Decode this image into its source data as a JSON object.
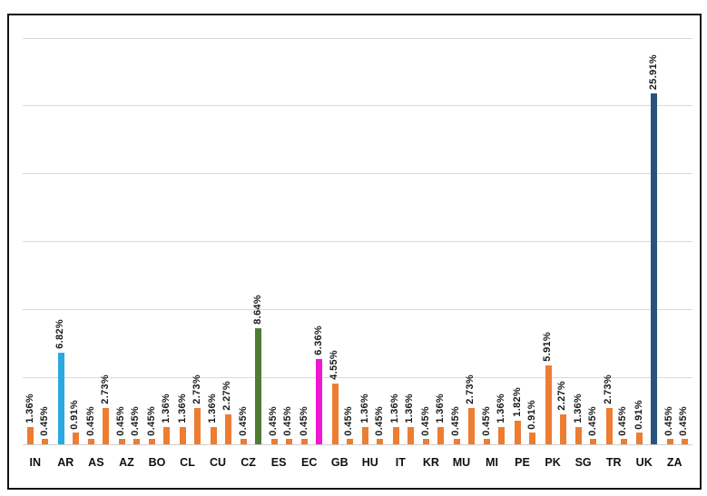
{
  "chart_data": {
    "type": "bar",
    "title": "",
    "xlabel": "",
    "ylabel": "",
    "ylim": [
      0,
      30
    ],
    "gridline_interval_pct": 5,
    "grid": true,
    "legend": "none",
    "value_format": "percent",
    "bars_per_category": 2,
    "gridline_color": "#d9d9d9",
    "frame_border_color": "#121212",
    "bar_colors": {
      "orange": "#ED7D31",
      "blue": "#2BA9E0",
      "green": "#4F7B35",
      "magenta": "#F016D2",
      "navy": "#275380"
    },
    "categories": [
      "IN",
      "AR",
      "AS",
      "AZ",
      "BO",
      "CL",
      "CU",
      "CZ",
      "ES",
      "EC",
      "GB",
      "HU",
      "IT",
      "KR",
      "MU",
      "MI",
      "PE",
      "PK",
      "SG",
      "TR",
      "UK",
      "ZA"
    ],
    "groups": [
      {
        "category": "IN",
        "bars": [
          {
            "value": 1.36,
            "label": "1.36%",
            "color": "orange"
          },
          {
            "value": 0.45,
            "label": "0.45%",
            "color": "orange"
          }
        ]
      },
      {
        "category": "AR",
        "bars": [
          {
            "value": 6.82,
            "label": "6.82%",
            "color": "blue"
          },
          {
            "value": 0.91,
            "label": "0.91%",
            "color": "orange"
          }
        ]
      },
      {
        "category": "AS",
        "bars": [
          {
            "value": 0.45,
            "label": "0.45%",
            "color": "orange"
          },
          {
            "value": 2.73,
            "label": "2.73%",
            "color": "orange"
          }
        ]
      },
      {
        "category": "AZ",
        "bars": [
          {
            "value": 0.45,
            "label": "0.45%",
            "color": "orange"
          },
          {
            "value": 0.45,
            "label": "0.45%",
            "color": "orange"
          }
        ]
      },
      {
        "category": "BO",
        "bars": [
          {
            "value": 0.45,
            "label": "0.45%",
            "color": "orange"
          },
          {
            "value": 1.36,
            "label": "1.36%",
            "color": "orange"
          }
        ]
      },
      {
        "category": "CL",
        "bars": [
          {
            "value": 1.36,
            "label": "1.36%",
            "color": "orange"
          },
          {
            "value": 2.73,
            "label": "2.73%",
            "color": "orange"
          }
        ]
      },
      {
        "category": "CU",
        "bars": [
          {
            "value": 1.36,
            "label": "1.36%",
            "color": "orange"
          },
          {
            "value": 2.27,
            "label": "2.27%",
            "color": "orange"
          }
        ]
      },
      {
        "category": "CZ",
        "bars": [
          {
            "value": 0.45,
            "label": "0.45%",
            "color": "orange"
          },
          {
            "value": 8.64,
            "label": "8.64%",
            "color": "green"
          }
        ]
      },
      {
        "category": "ES",
        "bars": [
          {
            "value": 0.45,
            "label": "0.45%",
            "color": "orange"
          },
          {
            "value": 0.45,
            "label": "0.45%",
            "color": "orange"
          }
        ]
      },
      {
        "category": "EC",
        "bars": [
          {
            "value": 0.45,
            "label": "0.45%",
            "color": "orange"
          },
          {
            "value": 6.36,
            "label": "6.36%",
            "color": "magenta"
          }
        ]
      },
      {
        "category": "GB",
        "bars": [
          {
            "value": 4.55,
            "label": "4.55%",
            "color": "orange"
          },
          {
            "value": 0.45,
            "label": "0.45%",
            "color": "orange"
          }
        ]
      },
      {
        "category": "HU",
        "bars": [
          {
            "value": 1.36,
            "label": "1.36%",
            "color": "orange"
          },
          {
            "value": 0.45,
            "label": "0.45%",
            "color": "orange"
          }
        ]
      },
      {
        "category": "IT",
        "bars": [
          {
            "value": 1.36,
            "label": "1.36%",
            "color": "orange"
          },
          {
            "value": 1.36,
            "label": "1.36%",
            "color": "orange"
          }
        ]
      },
      {
        "category": "KR",
        "bars": [
          {
            "value": 0.45,
            "label": "0.45%",
            "color": "orange"
          },
          {
            "value": 1.36,
            "label": "1.36%",
            "color": "orange"
          }
        ]
      },
      {
        "category": "MU",
        "bars": [
          {
            "value": 0.45,
            "label": "0.45%",
            "color": "orange"
          },
          {
            "value": 2.73,
            "label": "2.73%",
            "color": "orange"
          }
        ]
      },
      {
        "category": "MI",
        "bars": [
          {
            "value": 0.45,
            "label": "0.45%",
            "color": "orange"
          },
          {
            "value": 1.36,
            "label": "1.36%",
            "color": "orange"
          }
        ]
      },
      {
        "category": "PE",
        "bars": [
          {
            "value": 1.82,
            "label": "1.82%",
            "color": "orange"
          },
          {
            "value": 0.91,
            "label": "0.91%",
            "color": "orange"
          }
        ]
      },
      {
        "category": "PK",
        "bars": [
          {
            "value": 5.91,
            "label": "5.91%",
            "color": "orange"
          },
          {
            "value": 2.27,
            "label": "2.27%",
            "color": "orange"
          }
        ]
      },
      {
        "category": "SG",
        "bars": [
          {
            "value": 1.36,
            "label": "1.36%",
            "color": "orange"
          },
          {
            "value": 0.45,
            "label": "0.45%",
            "color": "orange"
          }
        ]
      },
      {
        "category": "TR",
        "bars": [
          {
            "value": 2.73,
            "label": "2.73%",
            "color": "orange"
          },
          {
            "value": 0.45,
            "label": "0.45%",
            "color": "orange"
          }
        ]
      },
      {
        "category": "UK",
        "bars": [
          {
            "value": 0.91,
            "label": "0.91%",
            "color": "orange"
          },
          {
            "value": 25.91,
            "label": "25.91%",
            "color": "navy"
          }
        ]
      },
      {
        "category": "ZA",
        "bars": [
          {
            "value": 0.45,
            "label": "0.45%",
            "color": "orange"
          },
          {
            "value": 0.45,
            "label": "0.45%",
            "color": "orange"
          }
        ]
      }
    ]
  }
}
